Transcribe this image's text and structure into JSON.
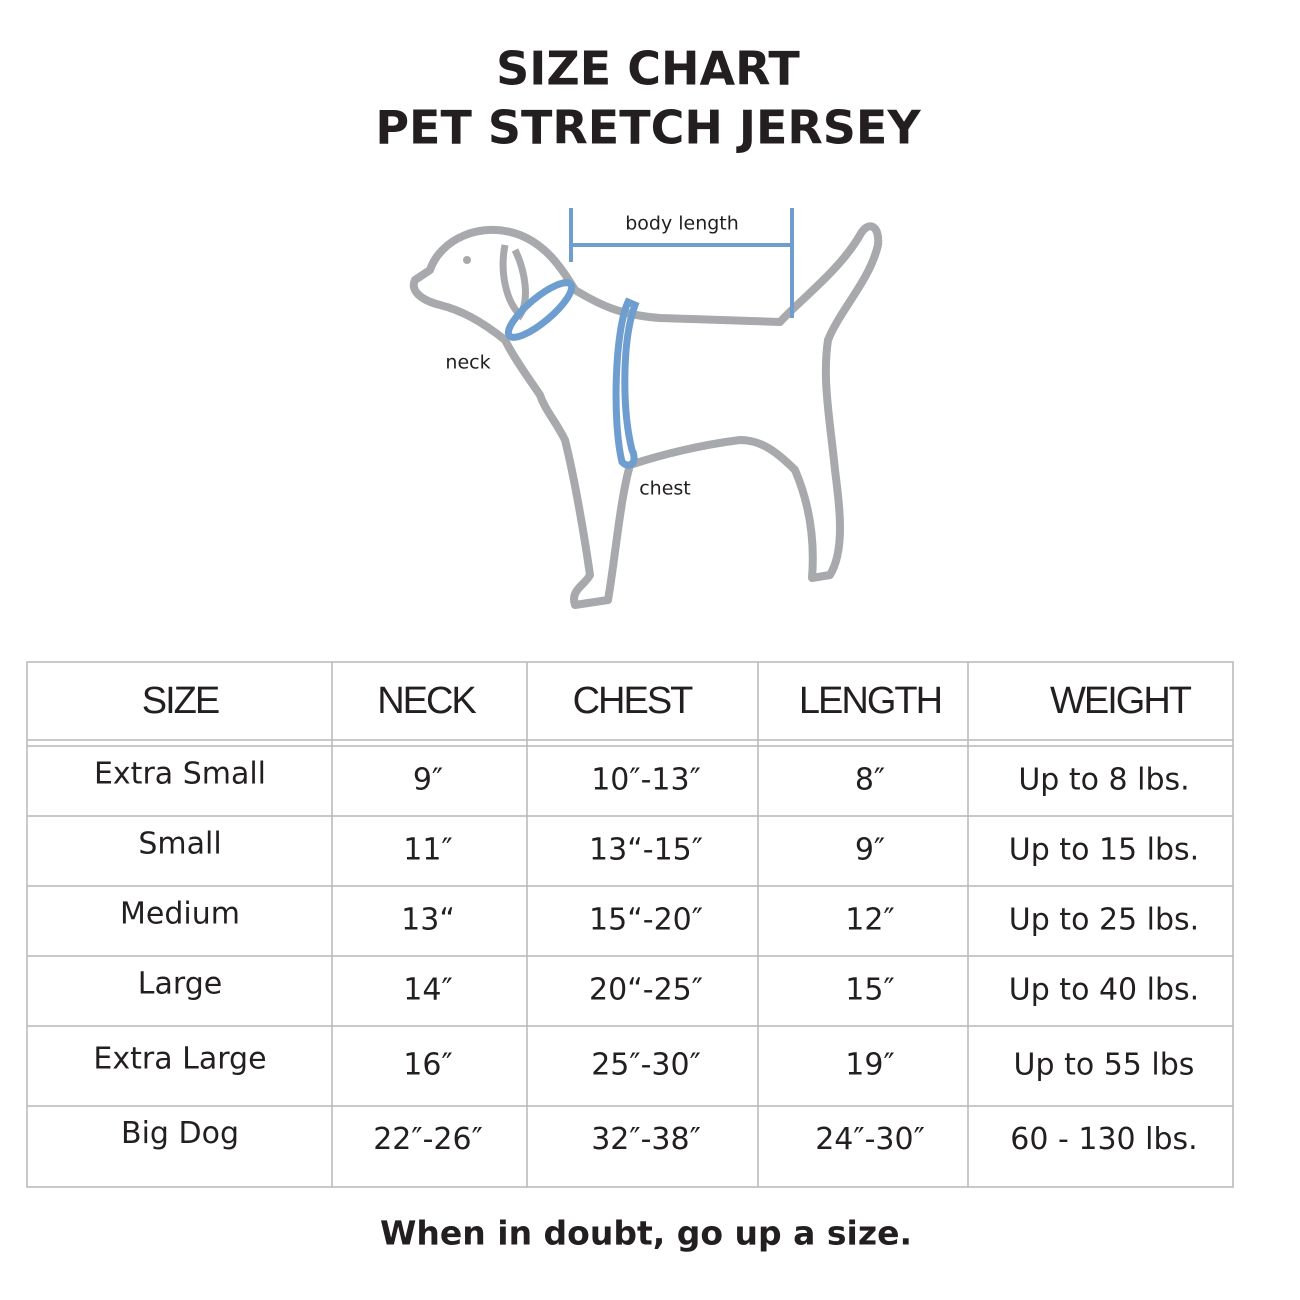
{
  "header": {
    "title": "SIZE CHART",
    "subtitle": "PET STRETCH JERSEY"
  },
  "diagram": {
    "labels": {
      "body_length": "body length",
      "neck": "neck",
      "chest": "chest"
    }
  },
  "table": {
    "columns": [
      "SIZE",
      "NECK",
      "CHEST",
      "LENGTH",
      "WEIGHT"
    ],
    "rows": [
      [
        "Extra Small",
        "9″",
        "10″-13″",
        "8″",
        "Up to 8 lbs."
      ],
      [
        "Small",
        "11″",
        "13“-15″",
        "9″",
        "Up to 15 lbs."
      ],
      [
        "Medium",
        "13“",
        "15“-20″",
        "12″",
        "Up to 25 lbs."
      ],
      [
        "Large",
        "14″",
        "20“-25″",
        "15″",
        "Up to 40 lbs."
      ],
      [
        "Extra Large",
        "16″",
        "25″-30″",
        "19″",
        "Up to 55 lbs"
      ],
      [
        "Big Dog",
        "22″-26″",
        "32″-38″",
        "24″-30″",
        "60 - 130 lbs."
      ]
    ]
  },
  "footer": {
    "note": "When in doubt, go up a size."
  }
}
